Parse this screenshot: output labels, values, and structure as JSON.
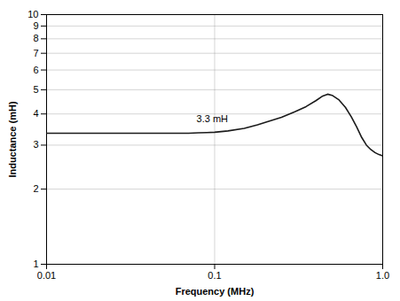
{
  "chart_data": {
    "type": "line",
    "title": "",
    "xlabel": "Frequency (MHz)",
    "ylabel": "Inductance (mH)",
    "x": [
      0.01,
      0.012,
      0.015,
      0.02,
      0.025,
      0.03,
      0.04,
      0.05,
      0.06,
      0.07,
      0.08,
      0.09,
      0.1,
      0.12,
      0.15,
      0.18,
      0.2,
      0.25,
      0.3,
      0.35,
      0.4,
      0.44,
      0.47,
      0.5,
      0.55,
      0.6,
      0.65,
      0.7,
      0.75,
      0.8,
      0.85,
      0.9,
      0.95,
      1.0
    ],
    "values": [
      3.35,
      3.35,
      3.35,
      3.35,
      3.35,
      3.35,
      3.35,
      3.35,
      3.35,
      3.35,
      3.36,
      3.37,
      3.38,
      3.42,
      3.5,
      3.62,
      3.7,
      3.88,
      4.08,
      4.28,
      4.52,
      4.72,
      4.8,
      4.75,
      4.55,
      4.25,
      3.9,
      3.55,
      3.22,
      3.0,
      2.88,
      2.8,
      2.75,
      2.72
    ],
    "color": "#1a1a1a",
    "xlim": [
      0.01,
      1.0
    ],
    "ylim": [
      1,
      10
    ],
    "xticks": [
      0.01,
      0.1,
      {
        "value": 1.0,
        "label": "1.0"
      }
    ],
    "yticks": [
      1,
      2,
      3,
      4,
      5,
      6,
      7,
      8,
      9,
      10
    ],
    "log": true,
    "grid": true,
    "annotations": [
      {
        "text": "3.3 mH",
        "x": 0.078,
        "y": 3.82
      }
    ]
  }
}
